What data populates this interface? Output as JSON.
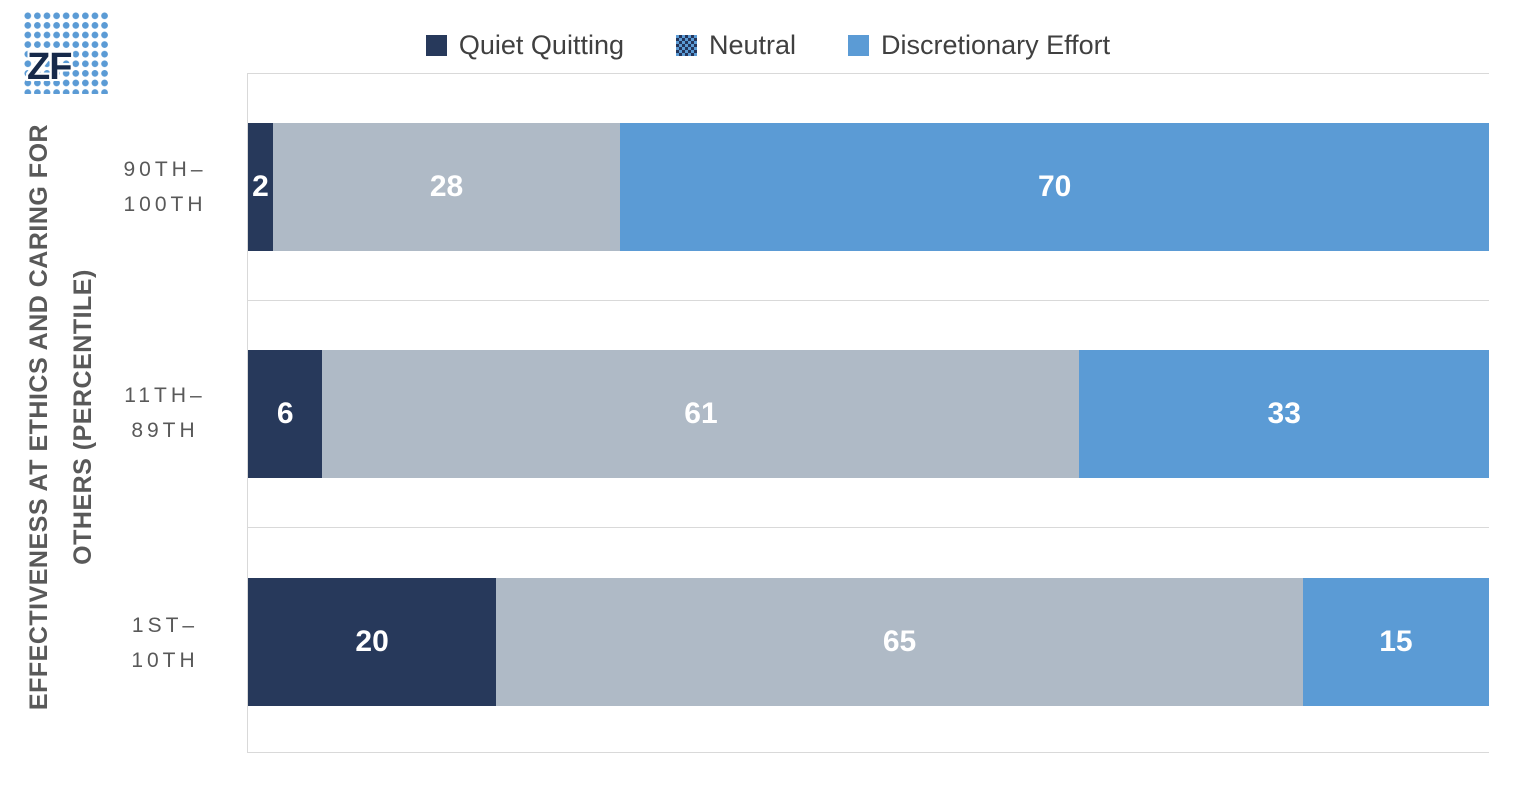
{
  "logo": {
    "text": "ZF"
  },
  "legend": {
    "items": [
      {
        "label": "Quiet Quitting",
        "pattern": "solid",
        "color": "#27395B"
      },
      {
        "label": "Neutral",
        "pattern": "checker",
        "color": "#5B9BD5",
        "color2": "#24365C"
      },
      {
        "label": "Discretionary Effort",
        "pattern": "solid",
        "color": "#5B9BD5"
      }
    ]
  },
  "y_axis": {
    "title_line1": "EFFECTIVENESS AT ETHICS AND CARING FOR",
    "title_line2": "OTHERS (PERCENTILE)"
  },
  "category_labels": [
    {
      "line1": "90TH–",
      "line2": "100TH"
    },
    {
      "line1": "11TH–",
      "line2": "89TH"
    },
    {
      "line1": "1ST–",
      "line2": "10TH"
    }
  ],
  "chart_data": {
    "type": "bar",
    "orientation": "horizontal",
    "stacked": true,
    "categories": [
      "90TH–100TH",
      "11TH–89TH",
      "1ST–10TH"
    ],
    "series": [
      {
        "name": "Quiet Quitting",
        "color": "#27395B",
        "values": [
          2,
          6,
          20
        ]
      },
      {
        "name": "Neutral",
        "color": "#AFBAC6",
        "values": [
          28,
          61,
          65
        ]
      },
      {
        "name": "Discretionary Effort",
        "color": "#5B9BD5",
        "values": [
          70,
          33,
          15
        ]
      }
    ],
    "value_axis": {
      "min": 0,
      "max": 100,
      "unit": "percent"
    },
    "ylabel": "EFFECTIVENESS AT ETHICS AND CARING FOR OTHERS (PERCENTILE)",
    "legend_position": "top",
    "grid": "category-separators",
    "data_labels": "inside-center-white"
  }
}
